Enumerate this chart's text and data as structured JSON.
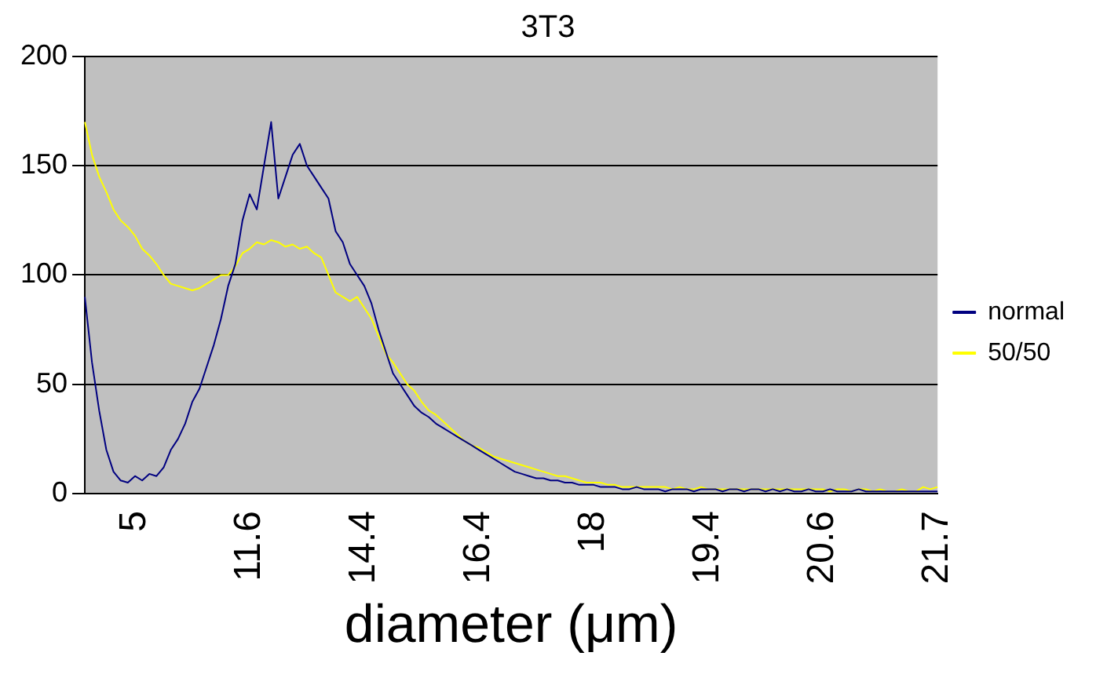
{
  "chart_data": {
    "type": "line",
    "title": "3T3",
    "xlabel": "diameter (μm)",
    "categories": [
      null,
      null,
      null,
      null,
      null,
      null,
      null,
      "5",
      null,
      null,
      null,
      null,
      null,
      null,
      null,
      null,
      null,
      null,
      null,
      null,
      null,
      null,
      null,
      "11.6",
      null,
      null,
      null,
      null,
      null,
      null,
      null,
      null,
      null,
      null,
      null,
      null,
      null,
      null,
      null,
      "14.4",
      null,
      null,
      null,
      null,
      null,
      null,
      null,
      null,
      null,
      null,
      null,
      null,
      null,
      null,
      null,
      "16.4",
      null,
      null,
      null,
      null,
      null,
      null,
      null,
      null,
      null,
      null,
      null,
      null,
      null,
      null,
      null,
      "18",
      null,
      null,
      null,
      null,
      null,
      null,
      null,
      null,
      null,
      null,
      null,
      null,
      null,
      null,
      null,
      "19.4",
      null,
      null,
      null,
      null,
      null,
      null,
      null,
      null,
      null,
      null,
      null,
      null,
      null,
      null,
      null,
      "20.6",
      null,
      null,
      null,
      null,
      null,
      null,
      null,
      null,
      null,
      null,
      null,
      null,
      null,
      null,
      null,
      "21.7"
    ],
    "series": [
      {
        "name": "normal",
        "color": "#000080",
        "values": [
          90,
          60,
          38,
          20,
          10,
          6,
          5,
          8,
          6,
          9,
          8,
          12,
          20,
          25,
          32,
          42,
          48,
          58,
          68,
          80,
          95,
          105,
          125,
          137,
          130,
          150,
          170,
          135,
          145,
          155,
          160,
          150,
          145,
          140,
          135,
          120,
          115,
          105,
          100,
          95,
          87,
          75,
          65,
          55,
          50,
          45,
          40,
          37,
          35,
          32,
          30,
          28,
          26,
          24,
          22,
          20,
          18,
          16,
          14,
          12,
          10,
          9,
          8,
          7,
          7,
          6,
          6,
          5,
          5,
          4,
          4,
          4,
          3,
          3,
          3,
          2,
          2,
          3,
          2,
          2,
          2,
          1,
          2,
          2,
          2,
          1,
          2,
          2,
          2,
          1,
          2,
          2,
          1,
          2,
          2,
          1,
          2,
          1,
          2,
          1,
          1,
          2,
          1,
          1,
          2,
          1,
          1,
          1,
          2,
          1,
          1,
          1,
          1,
          1,
          1,
          1,
          1,
          1,
          1,
          1
        ]
      },
      {
        "name": "50/50",
        "color": "#ffff00",
        "values": [
          170,
          155,
          145,
          138,
          130,
          125,
          122,
          118,
          112,
          109,
          105,
          100,
          96,
          95,
          94,
          93,
          94,
          96,
          98,
          100,
          100,
          104,
          110,
          112,
          115,
          114,
          116,
          115,
          113,
          114,
          112,
          113,
          110,
          108,
          100,
          92,
          90,
          88,
          90,
          85,
          80,
          72,
          64,
          60,
          55,
          50,
          47,
          42,
          38,
          36,
          33,
          30,
          27,
          24,
          22,
          21,
          19,
          17,
          16,
          15,
          14,
          13,
          12,
          11,
          10,
          9,
          8,
          8,
          7,
          6,
          5,
          5,
          5,
          4,
          4,
          3,
          3,
          3,
          3,
          3,
          3,
          3,
          2,
          3,
          2,
          2,
          3,
          2,
          2,
          2,
          2,
          2,
          2,
          2,
          2,
          2,
          2,
          2,
          2,
          2,
          2,
          2,
          2,
          2,
          1,
          2,
          2,
          1,
          2,
          2,
          1,
          2,
          1,
          1,
          2,
          1,
          1,
          3,
          2,
          3
        ]
      }
    ],
    "ylim": [
      0,
      200
    ],
    "yticks": [
      0,
      50,
      100,
      150,
      200
    ],
    "grid": "y",
    "legend": "right",
    "marker": "none",
    "line_style": "solid"
  }
}
